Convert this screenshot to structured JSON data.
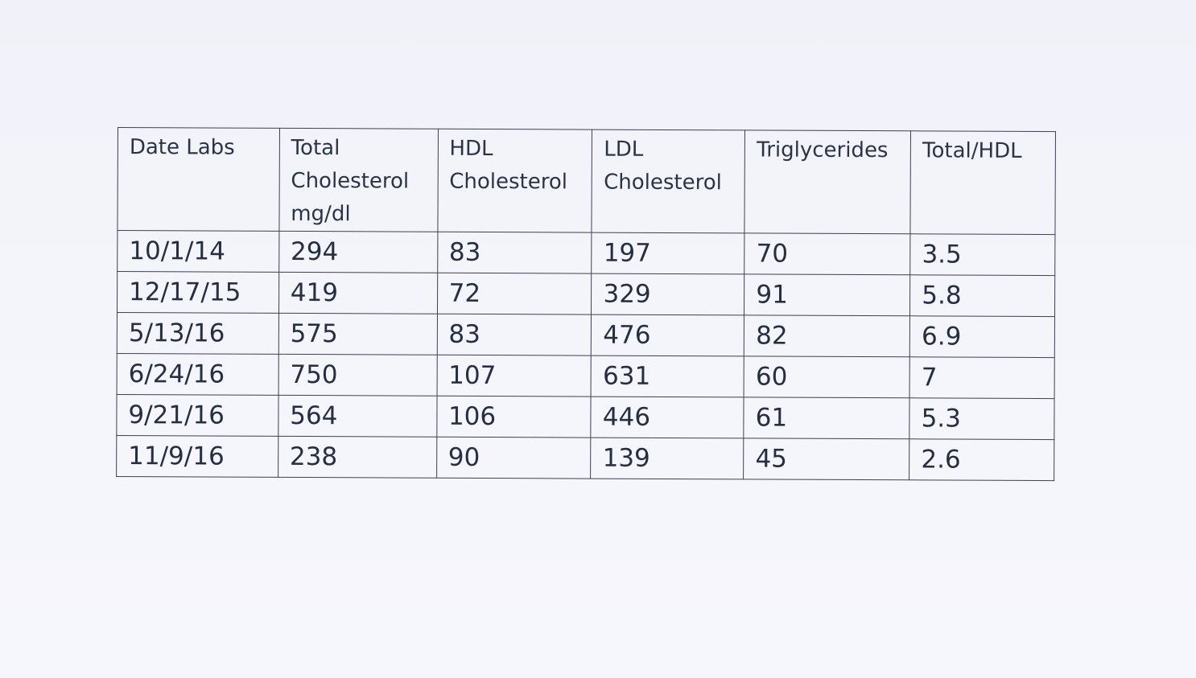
{
  "table": {
    "headers": [
      [
        "Date Labs"
      ],
      [
        "Total",
        "Cholesterol",
        "mg/dl"
      ],
      [
        "HDL",
        "Cholesterol"
      ],
      [
        "LDL",
        "Cholesterol"
      ],
      [
        "Triglycerides"
      ],
      [
        "Total/HDL"
      ]
    ],
    "rows": [
      [
        "10/1/14",
        "294",
        "83",
        "197",
        "70",
        "3.5"
      ],
      [
        "12/17/15",
        "419",
        "72",
        "329",
        "91",
        "5.8"
      ],
      [
        "5/13/16",
        "575",
        "83",
        "476",
        "82",
        "6.9"
      ],
      [
        "6/24/16",
        "750",
        "107",
        "631",
        "60",
        "7"
      ],
      [
        "9/21/16",
        "564",
        "106",
        "446",
        "61",
        "5.3"
      ],
      [
        "11/9/16",
        "238",
        "90",
        "139",
        "45",
        "2.6"
      ]
    ]
  },
  "colors": {
    "paper": "#f3f4fa",
    "ink": "#2a3346",
    "rule": "#3a4152"
  }
}
